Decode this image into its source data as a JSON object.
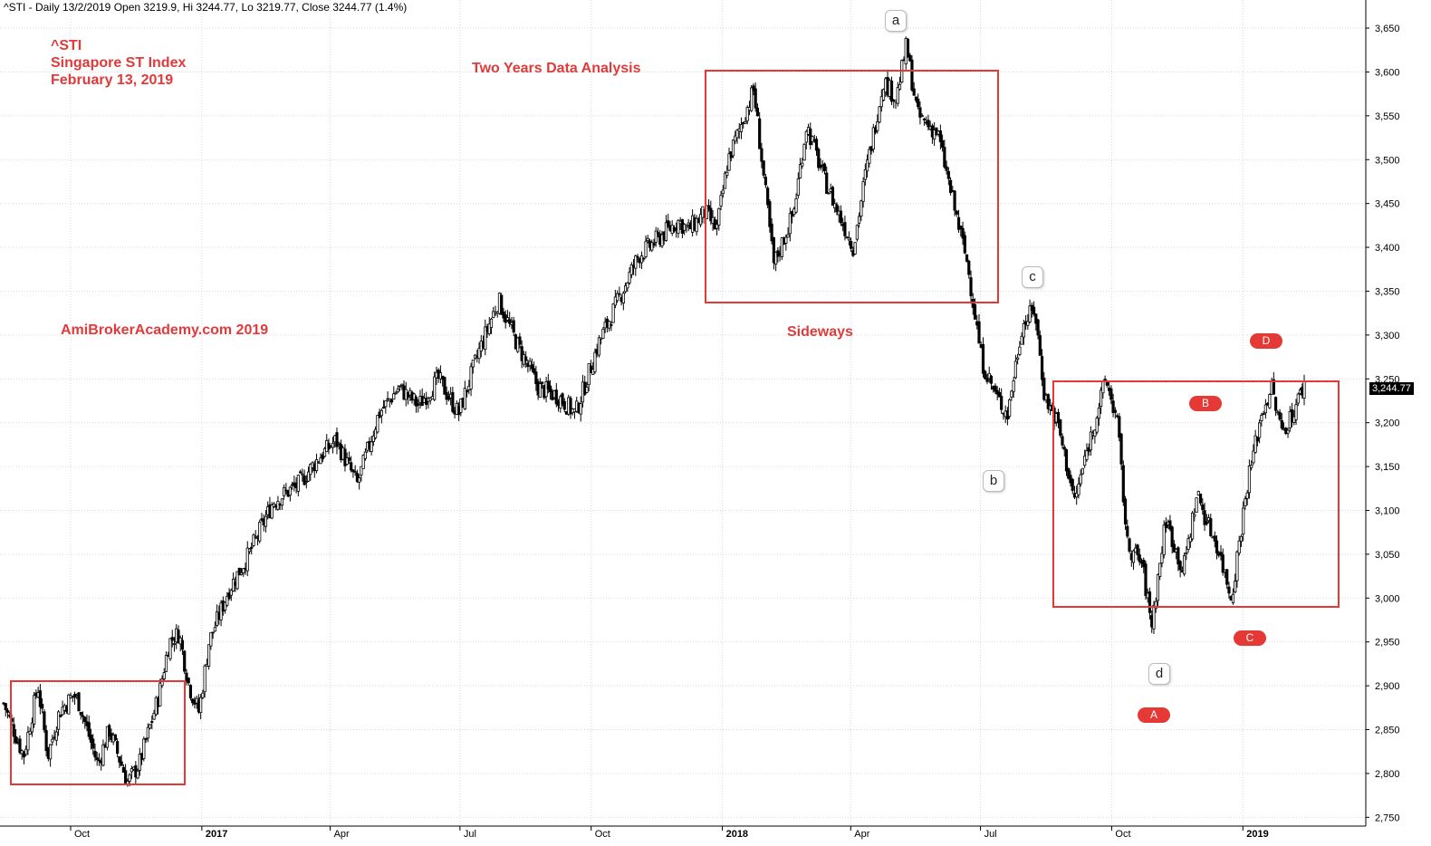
{
  "header": {
    "text": "^STI - Daily 13/2/2019 Open 3219.9, Hi 3244.77, Lo 3219.77, Close 3244.77 (1.4%)"
  },
  "annotations": {
    "symbol": "^STI",
    "index_name": "Singapore ST Index",
    "date": "February 13, 2019",
    "analysis_title": "Two Years Data Analysis",
    "site": "AmiBrokerAcademy.com 2019",
    "sideways": "Sideways"
  },
  "wave_labels": [
    "a",
    "b",
    "c",
    "d"
  ],
  "corrective_labels": [
    "A",
    "B",
    "C",
    "D"
  ],
  "colors": {
    "annotation_red": "#e03a3a",
    "box_red": "#e53935",
    "candle": "#000000",
    "grid": "#d9d9d9"
  },
  "chart_data": {
    "type": "candlestick",
    "series": [
      {
        "name": "^STI"
      }
    ],
    "ylim": [
      2740,
      3680
    ],
    "y_ticks": [
      2750,
      2800,
      2850,
      2900,
      2950,
      3000,
      3050,
      3100,
      3150,
      3200,
      3250,
      3300,
      3350,
      3400,
      3450,
      3500,
      3550,
      3600,
      3650
    ],
    "y_tick_labels": [
      "2,750",
      "2,800",
      "2,850",
      "2,900",
      "2,950",
      "3,000",
      "3,050",
      "3,100",
      "3,150",
      "3,200",
      "3,250",
      "3,300",
      "3,350",
      "3,400",
      "3,450",
      "3,500",
      "3,550",
      "3,600",
      "3,650"
    ],
    "x_labels": [
      "Oct",
      "2017",
      "Apr",
      "Jul",
      "Oct",
      "2018",
      "Apr",
      "Jul",
      "Oct",
      "2019"
    ],
    "last_close_label": "3,244.77",
    "close_path": [
      [
        "2016-08-15",
        2880
      ],
      [
        "2016-08-29",
        2820
      ],
      [
        "2016-09-08",
        2900
      ],
      [
        "2016-09-15",
        2820
      ],
      [
        "2016-09-23",
        2870
      ],
      [
        "2016-10-03",
        2890
      ],
      [
        "2016-10-07",
        2880
      ],
      [
        "2016-10-20",
        2810
      ],
      [
        "2016-10-28",
        2850
      ],
      [
        "2016-11-10",
        2790
      ],
      [
        "2016-11-18",
        2810
      ],
      [
        "2016-12-02",
        2890
      ],
      [
        "2016-12-09",
        2950
      ],
      [
        "2016-12-16",
        2960
      ],
      [
        "2016-12-23",
        2900
      ],
      [
        "2016-12-30",
        2870
      ],
      [
        "2017-01-06",
        2950
      ],
      [
        "2017-01-20",
        3010
      ],
      [
        "2017-02-03",
        3050
      ],
      [
        "2017-02-20",
        3110
      ],
      [
        "2017-03-10",
        3130
      ],
      [
        "2017-03-24",
        3160
      ],
      [
        "2017-04-05",
        3180
      ],
      [
        "2017-04-20",
        3130
      ],
      [
        "2017-05-05",
        3210
      ],
      [
        "2017-05-19",
        3240
      ],
      [
        "2017-06-02",
        3220
      ],
      [
        "2017-06-16",
        3250
      ],
      [
        "2017-06-30",
        3210
      ],
      [
        "2017-07-14",
        3280
      ],
      [
        "2017-07-28",
        3340
      ],
      [
        "2017-08-10",
        3290
      ],
      [
        "2017-08-25",
        3240
      ],
      [
        "2017-09-08",
        3230
      ],
      [
        "2017-09-20",
        3210
      ],
      [
        "2017-10-06",
        3290
      ],
      [
        "2017-10-20",
        3340
      ],
      [
        "2017-11-03",
        3390
      ],
      [
        "2017-11-17",
        3410
      ],
      [
        "2017-12-01",
        3430
      ],
      [
        "2017-12-08",
        3420
      ],
      [
        "2017-12-20",
        3440
      ],
      [
        "2017-12-28",
        3420
      ],
      [
        "2018-01-05",
        3500
      ],
      [
        "2018-01-12",
        3530
      ],
      [
        "2018-01-23",
        3580
      ],
      [
        "2018-02-06",
        3380
      ],
      [
        "2018-02-20",
        3440
      ],
      [
        "2018-03-01",
        3540
      ],
      [
        "2018-03-13",
        3480
      ],
      [
        "2018-03-23",
        3440
      ],
      [
        "2018-04-03",
        3400
      ],
      [
        "2018-04-11",
        3480
      ],
      [
        "2018-04-24",
        3590
      ],
      [
        "2018-05-03",
        3570
      ],
      [
        "2018-05-10",
        3630
      ],
      [
        "2018-05-18",
        3550
      ],
      [
        "2018-06-01",
        3530
      ],
      [
        "2018-06-12",
        3450
      ],
      [
        "2018-06-22",
        3380
      ],
      [
        "2018-07-02",
        3270
      ],
      [
        "2018-07-12",
        3230
      ],
      [
        "2018-07-20",
        3210
      ],
      [
        "2018-07-30",
        3310
      ],
      [
        "2018-08-08",
        3330
      ],
      [
        "2018-08-15",
        3230
      ],
      [
        "2018-08-24",
        3200
      ],
      [
        "2018-09-05",
        3110
      ],
      [
        "2018-09-14",
        3170
      ],
      [
        "2018-09-27",
        3250
      ],
      [
        "2018-10-05",
        3200
      ],
      [
        "2018-10-12",
        3060
      ],
      [
        "2018-10-22",
        3040
      ],
      [
        "2018-10-29",
        2970
      ],
      [
        "2018-11-08",
        3090
      ],
      [
        "2018-11-20",
        3030
      ],
      [
        "2018-11-30",
        3120
      ],
      [
        "2018-12-06",
        3090
      ],
      [
        "2018-12-14",
        3060
      ],
      [
        "2018-12-24",
        3000
      ],
      [
        "2019-01-04",
        3130
      ],
      [
        "2019-01-14",
        3210
      ],
      [
        "2019-01-21",
        3240
      ],
      [
        "2019-01-28",
        3190
      ],
      [
        "2019-02-05",
        3210
      ],
      [
        "2019-02-13",
        3244.77
      ]
    ]
  }
}
